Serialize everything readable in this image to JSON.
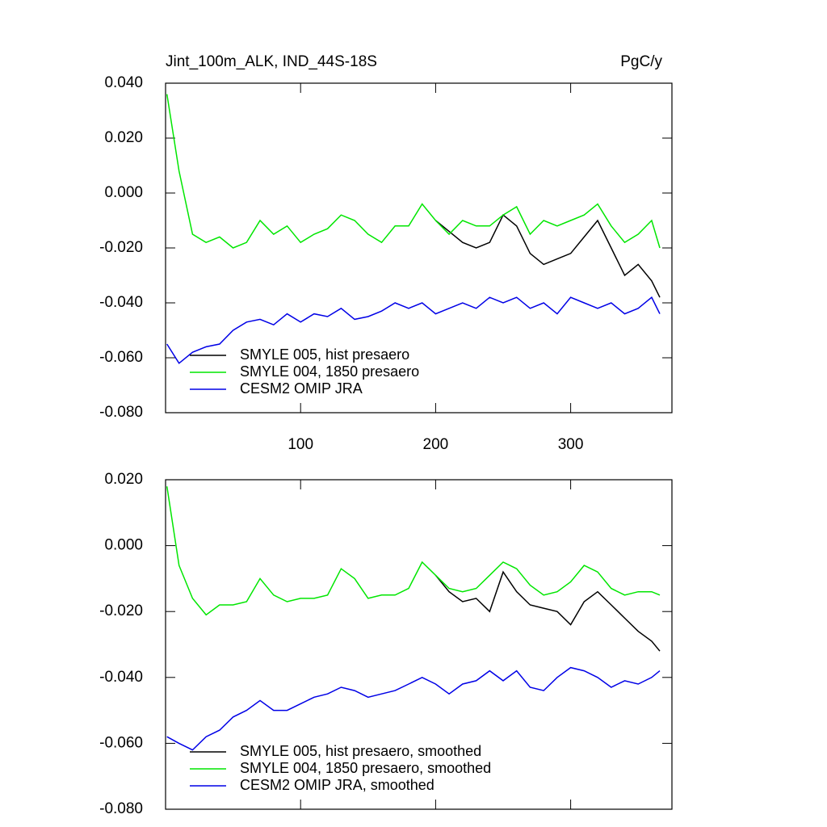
{
  "chart_data": [
    {
      "type": "line",
      "title": "Jint_100m_ALK, IND_44S-18S",
      "right_title": "PgC/y",
      "x": [
        1,
        10,
        20,
        30,
        40,
        50,
        60,
        70,
        80,
        90,
        100,
        110,
        120,
        130,
        140,
        150,
        160,
        170,
        180,
        190,
        200,
        210,
        220,
        230,
        240,
        250,
        260,
        270,
        280,
        290,
        300,
        310,
        320,
        330,
        340,
        350,
        360,
        366
      ],
      "series": [
        {
          "name": "SMYLE 005, hist presaero",
          "color": "#000000",
          "values": [
            null,
            null,
            null,
            null,
            null,
            null,
            null,
            null,
            null,
            null,
            null,
            null,
            null,
            null,
            null,
            null,
            null,
            null,
            null,
            null,
            -0.01,
            -0.014,
            -0.018,
            -0.02,
            -0.018,
            -0.008,
            -0.012,
            -0.022,
            -0.026,
            -0.024,
            -0.022,
            -0.016,
            -0.01,
            -0.02,
            -0.03,
            -0.026,
            -0.032,
            -0.038
          ]
        },
        {
          "name": "SMYLE 004, 1850 presaero",
          "color": "#00e600",
          "values": [
            0.036,
            0.008,
            -0.015,
            -0.018,
            -0.016,
            -0.02,
            -0.018,
            -0.01,
            -0.015,
            -0.012,
            -0.018,
            -0.015,
            -0.013,
            -0.008,
            -0.01,
            -0.015,
            -0.018,
            -0.012,
            -0.012,
            -0.004,
            -0.01,
            -0.015,
            -0.01,
            -0.012,
            -0.012,
            -0.008,
            -0.005,
            -0.015,
            -0.01,
            -0.012,
            -0.01,
            -0.008,
            -0.004,
            -0.012,
            -0.018,
            -0.015,
            -0.01,
            -0.02
          ]
        },
        {
          "name": "CESM2 OMIP JRA",
          "color": "#0000e6",
          "values": [
            -0.055,
            -0.062,
            -0.058,
            -0.056,
            -0.055,
            -0.05,
            -0.047,
            -0.046,
            -0.048,
            -0.044,
            -0.047,
            -0.044,
            -0.045,
            -0.042,
            -0.046,
            -0.045,
            -0.043,
            -0.04,
            -0.042,
            -0.04,
            -0.044,
            -0.042,
            -0.04,
            -0.042,
            -0.038,
            -0.04,
            -0.038,
            -0.042,
            -0.04,
            -0.044,
            -0.038,
            -0.04,
            -0.042,
            -0.04,
            -0.044,
            -0.042,
            -0.038,
            -0.044
          ]
        }
      ],
      "xlim": [
        0,
        375
      ],
      "xticks": [
        100,
        200,
        300
      ],
      "show_xtick_labels": true,
      "ylim": [
        -0.08,
        0.04
      ],
      "yticks": [
        {
          "value": -0.08,
          "label": "-0.080"
        },
        {
          "value": -0.06,
          "label": "-0.060"
        },
        {
          "value": -0.04,
          "label": "-0.040"
        },
        {
          "value": -0.02,
          "label": "-0.020"
        },
        {
          "value": 0,
          "label": "0.000"
        },
        {
          "value": 0.02,
          "label": "0.020"
        },
        {
          "value": 0.04,
          "label": "0.040"
        }
      ],
      "legend": "lower left"
    },
    {
      "type": "line",
      "x": [
        1,
        10,
        20,
        30,
        40,
        50,
        60,
        70,
        80,
        90,
        100,
        110,
        120,
        130,
        140,
        150,
        160,
        170,
        180,
        190,
        200,
        210,
        220,
        230,
        240,
        250,
        260,
        270,
        280,
        290,
        300,
        310,
        320,
        330,
        340,
        350,
        360,
        366
      ],
      "series": [
        {
          "name": "SMYLE 005, hist presaero, smoothed",
          "color": "#000000",
          "values": [
            null,
            null,
            null,
            null,
            null,
            null,
            null,
            null,
            null,
            null,
            null,
            null,
            null,
            null,
            null,
            null,
            null,
            null,
            null,
            null,
            -0.009,
            -0.014,
            -0.017,
            -0.016,
            -0.02,
            -0.008,
            -0.014,
            -0.018,
            -0.019,
            -0.02,
            -0.024,
            -0.017,
            -0.014,
            -0.018,
            -0.022,
            -0.026,
            -0.029,
            -0.032
          ]
        },
        {
          "name": "SMYLE 004, 1850 presaero, smoothed",
          "color": "#00e600",
          "values": [
            0.018,
            -0.006,
            -0.016,
            -0.021,
            -0.018,
            -0.018,
            -0.017,
            -0.01,
            -0.015,
            -0.017,
            -0.016,
            -0.016,
            -0.015,
            -0.007,
            -0.01,
            -0.016,
            -0.015,
            -0.015,
            -0.013,
            -0.005,
            -0.009,
            -0.013,
            -0.014,
            -0.013,
            -0.009,
            -0.005,
            -0.007,
            -0.012,
            -0.015,
            -0.014,
            -0.011,
            -0.006,
            -0.008,
            -0.013,
            -0.015,
            -0.014,
            -0.014,
            -0.015
          ]
        },
        {
          "name": "CESM2 OMIP JRA, smoothed",
          "color": "#0000e6",
          "values": [
            -0.058,
            -0.06,
            -0.062,
            -0.058,
            -0.056,
            -0.052,
            -0.05,
            -0.047,
            -0.05,
            -0.05,
            -0.048,
            -0.046,
            -0.045,
            -0.043,
            -0.044,
            -0.046,
            -0.045,
            -0.044,
            -0.042,
            -0.04,
            -0.042,
            -0.045,
            -0.042,
            -0.041,
            -0.038,
            -0.041,
            -0.038,
            -0.043,
            -0.044,
            -0.04,
            -0.037,
            -0.038,
            -0.04,
            -0.043,
            -0.041,
            -0.042,
            -0.04,
            -0.038
          ]
        }
      ],
      "xlim": [
        0,
        375
      ],
      "xticks": [
        100,
        200,
        300
      ],
      "show_xtick_labels": false,
      "ylim": [
        -0.08,
        0.02
      ],
      "yticks": [
        {
          "value": -0.08,
          "label": "-0.080"
        },
        {
          "value": -0.06,
          "label": "-0.060"
        },
        {
          "value": -0.04,
          "label": "-0.040"
        },
        {
          "value": -0.02,
          "label": "-0.020"
        },
        {
          "value": 0,
          "label": "0.000"
        },
        {
          "value": 0.02,
          "label": "0.020"
        }
      ],
      "legend": "lower left"
    }
  ]
}
